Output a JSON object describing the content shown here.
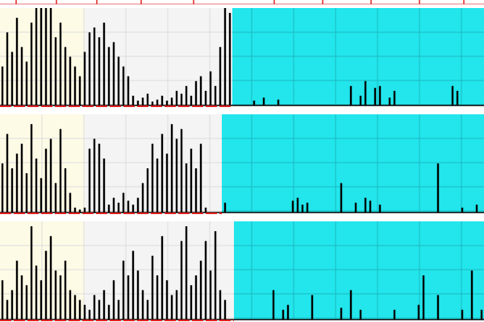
{
  "chart_data": [
    {
      "type": "bar",
      "color": "#000000",
      "ylim": [
        0,
        100
      ],
      "values": [
        40,
        75,
        55,
        90,
        60,
        45,
        85,
        100,
        100,
        100,
        100,
        70,
        85,
        60,
        50,
        40,
        30,
        55,
        75,
        80,
        70,
        85,
        60,
        65,
        50,
        40,
        30,
        10,
        5,
        8,
        12,
        4,
        6,
        10,
        5,
        8,
        15,
        12,
        20,
        10,
        25,
        30,
        15,
        35,
        20,
        60,
        100,
        95,
        0,
        0,
        0,
        0,
        5,
        0,
        8,
        0,
        0,
        6,
        0,
        0,
        0,
        0,
        0,
        0,
        0,
        0,
        0,
        0,
        0,
        0,
        0,
        0,
        20,
        0,
        10,
        25,
        0,
        18,
        20,
        0,
        8,
        15,
        0,
        0,
        0,
        0,
        0,
        0,
        0,
        0,
        0,
        0,
        0,
        20,
        15,
        0,
        0,
        0,
        0,
        0
      ]
    },
    {
      "type": "bar",
      "color": "#000000",
      "ylim": [
        0,
        100
      ],
      "values": [
        50,
        80,
        45,
        60,
        70,
        40,
        90,
        55,
        35,
        65,
        75,
        30,
        85,
        45,
        20,
        5,
        3,
        5,
        65,
        75,
        70,
        55,
        8,
        15,
        10,
        20,
        12,
        8,
        15,
        30,
        45,
        70,
        55,
        80,
        60,
        90,
        75,
        85,
        50,
        65,
        45,
        70,
        5,
        0,
        0,
        0,
        10,
        0,
        0,
        0,
        0,
        0,
        0,
        0,
        0,
        0,
        0,
        0,
        0,
        0,
        12,
        15,
        8,
        10,
        0,
        0,
        0,
        0,
        0,
        0,
        30,
        0,
        0,
        10,
        0,
        15,
        12,
        0,
        8,
        0,
        0,
        0,
        0,
        0,
        0,
        0,
        0,
        0,
        0,
        0,
        50,
        0,
        0,
        0,
        0,
        5,
        0,
        0,
        8,
        0
      ]
    },
    {
      "type": "bar",
      "color": "#000000",
      "ylim": [
        0,
        100
      ],
      "values": [
        40,
        20,
        30,
        60,
        45,
        35,
        95,
        55,
        40,
        70,
        85,
        50,
        45,
        60,
        30,
        25,
        20,
        15,
        10,
        25,
        20,
        30,
        15,
        40,
        20,
        60,
        45,
        70,
        50,
        30,
        20,
        65,
        45,
        85,
        40,
        25,
        30,
        80,
        95,
        35,
        45,
        60,
        80,
        50,
        90,
        30,
        20,
        0,
        0,
        0,
        0,
        0,
        0,
        0,
        0,
        0,
        30,
        0,
        10,
        15,
        0,
        0,
        0,
        0,
        25,
        0,
        0,
        0,
        0,
        0,
        12,
        0,
        30,
        0,
        10,
        0,
        0,
        0,
        0,
        0,
        0,
        10,
        0,
        0,
        0,
        0,
        15,
        45,
        0,
        0,
        25,
        0,
        0,
        0,
        0,
        10,
        0,
        50,
        0,
        10
      ]
    }
  ]
}
